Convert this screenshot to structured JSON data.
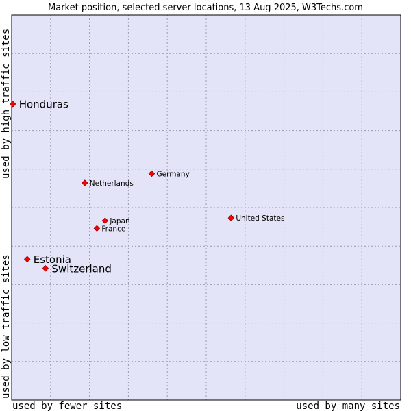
{
  "chart_data": {
    "type": "scatter",
    "title": "Market position, selected server locations, 13 Aug 2025, W3Techs.com",
    "xlabel_left": "used by fewer sites",
    "xlabel_right": "used by many sites",
    "ylabel_bottom": "used by low traffic sites",
    "ylabel_top": "used by high traffic sites",
    "xlim": [
      0,
      100
    ],
    "ylim": [
      0,
      100
    ],
    "grid": true,
    "colors": {
      "plot_background": "#e4e4f8",
      "grid": "#9a9aae",
      "marker": "#ff0000",
      "marker_outline": "#990000"
    },
    "points": [
      {
        "label": "Honduras",
        "x": 0.3,
        "y": 76.9,
        "highlight": true
      },
      {
        "label": "Estonia",
        "x": 4.0,
        "y": 36.6,
        "highlight": true
      },
      {
        "label": "Switzerland",
        "x": 8.7,
        "y": 34.2,
        "highlight": true
      },
      {
        "label": "Netherlands",
        "x": 18.8,
        "y": 56.4,
        "highlight": false
      },
      {
        "label": "Germany",
        "x": 36.0,
        "y": 58.8,
        "highlight": false
      },
      {
        "label": "United States",
        "x": 56.4,
        "y": 47.3,
        "highlight": false
      },
      {
        "label": "Japan",
        "x": 24.0,
        "y": 46.6,
        "highlight": false
      },
      {
        "label": "France",
        "x": 21.9,
        "y": 44.6,
        "highlight": false
      }
    ]
  }
}
